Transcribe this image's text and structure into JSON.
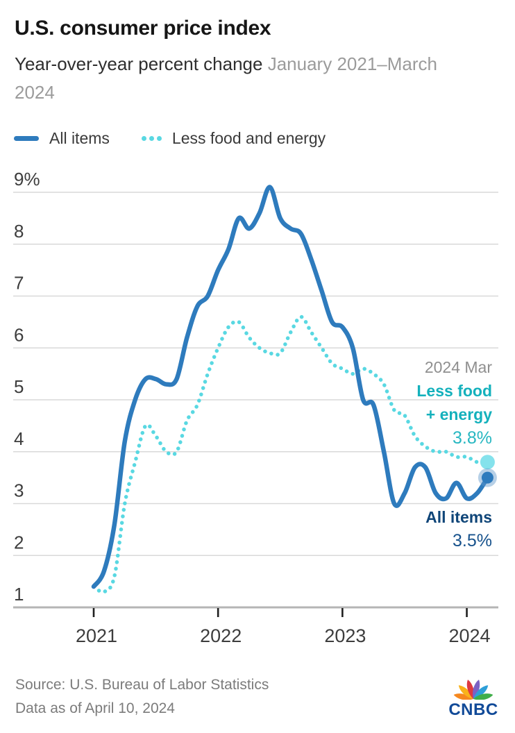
{
  "header": {
    "title": "U.S. consumer price index",
    "subtitle": "Year-over-year percent change",
    "subtitle_range": "January 2021–March 2024"
  },
  "legend": {
    "all_items_label": "All items",
    "core_label": "Less food and energy"
  },
  "annotations": {
    "date_label": "2024 Mar",
    "core_line1": "Less food",
    "core_line2": "+ energy",
    "core_value": "3.8%",
    "all_label": "All items",
    "all_value": "3.5%"
  },
  "footer": {
    "source": "Source: U.S. Bureau of Labor Statistics",
    "as_of": "Data as of April 10, 2024",
    "brand": "CNBC"
  },
  "colors": {
    "all_items_line": "#2e7bbd",
    "all_items_halo": "rgba(96,150,201,0.45)",
    "core_line": "#59d8e2",
    "core_end_dot": "#85e2ec",
    "gridline": "#d9d9d9",
    "axis_baseline": "#b5b5b5",
    "tick": "#1f1f1f",
    "axis_text": "#3d3d3d"
  },
  "chart_data": {
    "type": "line",
    "title": "U.S. consumer price index",
    "subtitle": "Year-over-year percent change, January 2021–March 2024",
    "xlabel": "",
    "ylabel": "Year-over-year percent change (%)",
    "x_interval": "monthly",
    "x_start": "Jan 2021",
    "x_end": "Mar 2024",
    "x_tick_labels": [
      "2021",
      "2022",
      "2023",
      "2024"
    ],
    "x_tick_month_indices": [
      0,
      12,
      24,
      36
    ],
    "y_ticks": [
      "9%",
      "8",
      "7",
      "6",
      "5",
      "4",
      "3",
      "2",
      "1"
    ],
    "y_tick_values": [
      9,
      8,
      7,
      6,
      5,
      4,
      3,
      2,
      1
    ],
    "ylim": [
      1,
      9
    ],
    "grid": "horizontal",
    "legend_position": "top-left",
    "series": [
      {
        "name": "Less food and energy",
        "style": "dotted",
        "values": [
          1.4,
          1.3,
          1.6,
          3.0,
          3.8,
          4.5,
          4.3,
          4.0,
          4.0,
          4.6,
          4.9,
          5.5,
          6.0,
          6.4,
          6.5,
          6.2,
          6.0,
          5.9,
          5.9,
          6.3,
          6.6,
          6.3,
          6.0,
          5.7,
          5.6,
          5.5,
          5.6,
          5.5,
          5.3,
          4.8,
          4.7,
          4.3,
          4.1,
          4.0,
          4.0,
          3.9,
          3.9,
          3.8,
          3.8
        ],
        "end_value": 3.8
      },
      {
        "name": "All items",
        "style": "solid",
        "values": [
          1.4,
          1.7,
          2.6,
          4.2,
          5.0,
          5.4,
          5.4,
          5.3,
          5.4,
          6.2,
          6.8,
          7.0,
          7.5,
          7.9,
          8.5,
          8.3,
          8.6,
          9.1,
          8.5,
          8.3,
          8.2,
          7.7,
          7.1,
          6.5,
          6.4,
          6.0,
          5.0,
          4.9,
          4.0,
          3.0,
          3.2,
          3.7,
          3.7,
          3.2,
          3.1,
          3.4,
          3.1,
          3.2,
          3.5
        ],
        "end_value": 3.5
      }
    ]
  }
}
